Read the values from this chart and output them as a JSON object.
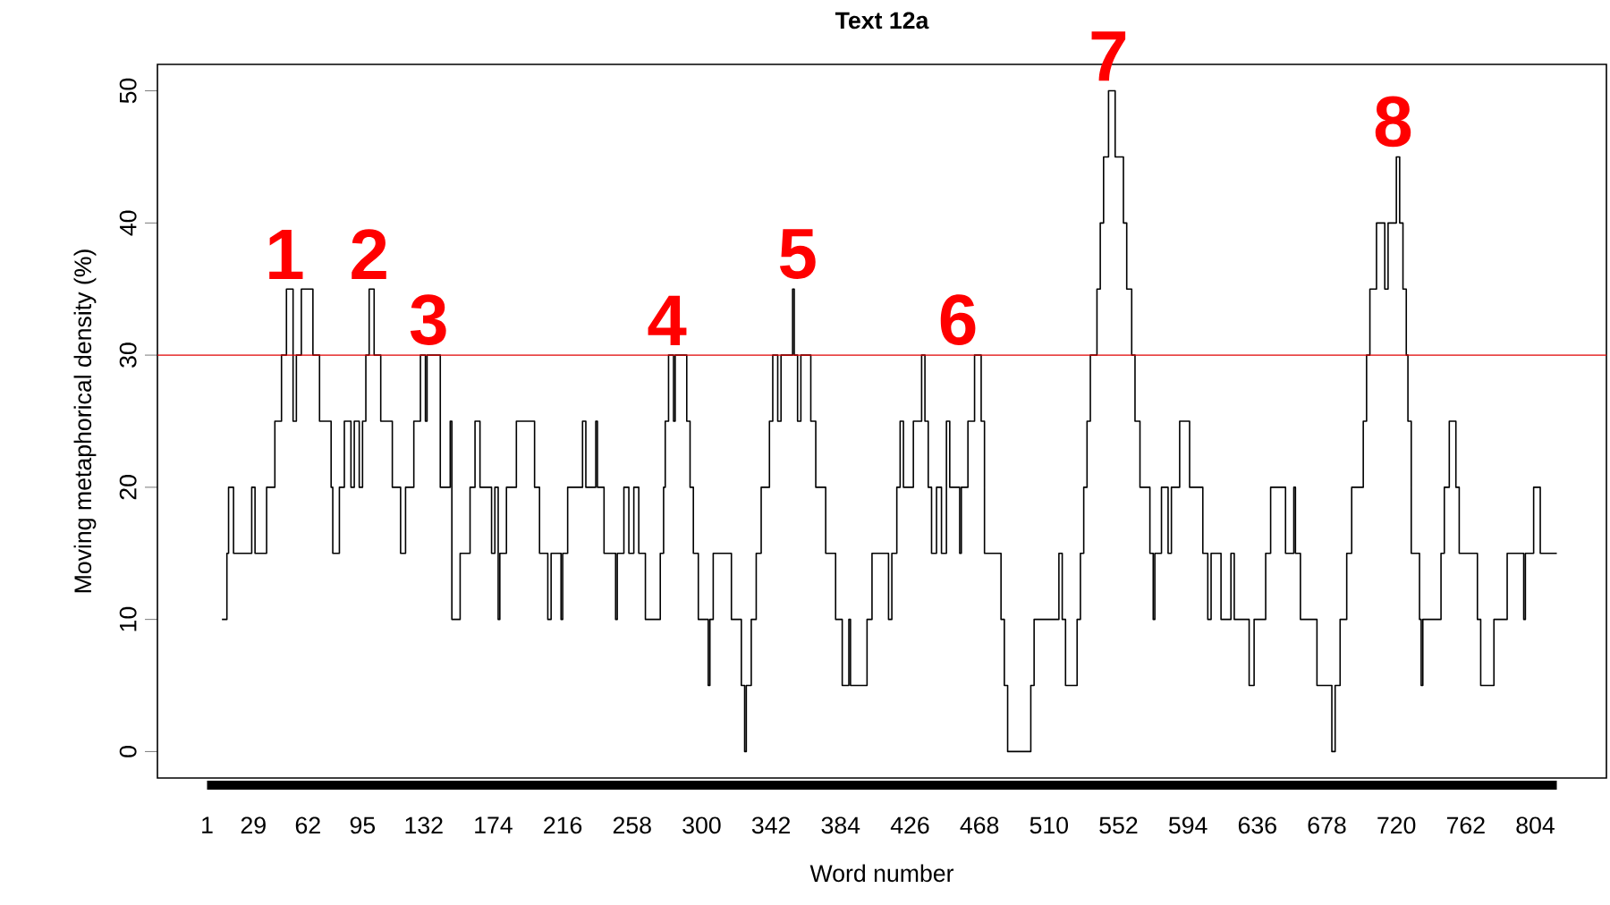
{
  "chart_data": {
    "type": "step",
    "title": "Text 12a",
    "xlabel": "Word number",
    "ylabel": "Moving metaphorical density (%)",
    "xlim": [
      -29,
      847
    ],
    "ylim": [
      -2,
      52
    ],
    "xticks": [
      1,
      29,
      62,
      95,
      132,
      174,
      216,
      258,
      300,
      342,
      384,
      426,
      468,
      510,
      552,
      594,
      636,
      678,
      720,
      762,
      804
    ],
    "yticks": [
      0,
      10,
      20,
      30,
      40,
      50
    ],
    "grid": false,
    "marker": "none",
    "line_style": "solid",
    "series": [
      {
        "color": "#000000",
        "x": [
          10,
          13,
          14,
          17,
          28,
          30,
          37,
          42,
          46,
          49,
          53,
          55,
          58,
          65,
          69,
          76,
          77,
          81,
          84,
          88,
          90,
          93,
          95,
          97,
          99,
          102,
          106,
          113,
          118,
          121,
          126,
          130,
          133,
          134,
          142,
          148,
          149,
          154,
          160,
          163,
          166,
          173,
          175,
          177,
          178,
          182,
          188,
          199,
          202,
          207,
          209,
          215,
          216,
          219,
          228,
          230,
          236,
          237,
          241,
          248,
          249,
          253,
          256,
          259,
          262,
          266,
          275,
          277,
          278,
          280,
          283,
          284,
          291,
          293,
          295,
          298,
          304,
          305,
          307,
          318,
          324,
          326,
          327,
          330,
          333,
          336,
          341,
          343,
          346,
          348,
          355,
          356,
          358,
          360,
          366,
          369,
          375,
          381,
          385,
          389,
          390,
          400,
          403,
          413,
          415,
          418,
          420,
          422,
          428,
          433,
          435,
          437,
          439,
          442,
          445,
          448,
          450,
          456,
          457,
          461,
          465,
          469,
          471,
          481,
          483,
          485,
          499,
          501,
          516,
          518,
          520,
          527,
          529,
          531,
          533,
          535,
          539,
          541,
          543,
          546,
          550,
          555,
          557,
          560,
          562,
          565,
          571,
          573,
          574,
          578,
          582,
          584,
          589,
          595,
          603,
          606,
          608,
          614,
          620,
          622,
          631,
          634,
          641,
          644,
          653,
          658,
          659,
          662,
          672,
          681,
          683,
          686,
          690,
          693,
          700,
          702,
          704,
          708,
          713,
          715,
          720,
          722,
          724,
          726,
          727,
          729,
          734,
          735,
          736,
          747,
          749,
          752,
          756,
          758,
          769,
          771,
          779,
          787,
          797,
          798,
          803,
          807,
          817
        ],
        "values": [
          10,
          15,
          20,
          15,
          20,
          15,
          20,
          25,
          30,
          35,
          25,
          30,
          35,
          30,
          25,
          20,
          15,
          20,
          25,
          20,
          25,
          20,
          25,
          30,
          35,
          30,
          25,
          20,
          15,
          20,
          25,
          30,
          25,
          30,
          20,
          25,
          10,
          15,
          20,
          25,
          20,
          15,
          20,
          10,
          15,
          20,
          25,
          20,
          15,
          10,
          15,
          10,
          15,
          20,
          25,
          20,
          25,
          20,
          15,
          10,
          15,
          20,
          15,
          20,
          15,
          10,
          15,
          20,
          25,
          30,
          25,
          30,
          25,
          20,
          15,
          10,
          5,
          10,
          15,
          10,
          5,
          0,
          5,
          10,
          15,
          20,
          25,
          30,
          25,
          30,
          35,
          30,
          25,
          30,
          25,
          20,
          15,
          10,
          5,
          10,
          5,
          10,
          15,
          10,
          15,
          20,
          25,
          20,
          25,
          30,
          25,
          20,
          15,
          20,
          15,
          25,
          20,
          15,
          20,
          25,
          30,
          25,
          15,
          10,
          5,
          0,
          5,
          10,
          15,
          10,
          5,
          10,
          15,
          20,
          25,
          30,
          35,
          40,
          45,
          50,
          45,
          40,
          35,
          30,
          25,
          20,
          15,
          10,
          15,
          20,
          15,
          20,
          25,
          20,
          15,
          10,
          15,
          10,
          15,
          10,
          5,
          10,
          15,
          20,
          15,
          20,
          15,
          10,
          5,
          0,
          5,
          10,
          15,
          20,
          25,
          30,
          35,
          40,
          35,
          40,
          45,
          40,
          35,
          30,
          25,
          15,
          10,
          5,
          10,
          15,
          20,
          25,
          20,
          15,
          10,
          5,
          10,
          15,
          10,
          15,
          20,
          15,
          15
        ]
      }
    ],
    "ref_lines": [
      {
        "axis": "y",
        "value": 30,
        "color": "#e00000",
        "line_style": "solid"
      }
    ],
    "annotations": [
      {
        "text": "1",
        "x": 48,
        "y": 35
      },
      {
        "text": "2",
        "x": 99,
        "y": 35
      },
      {
        "text": "3",
        "x": 135,
        "y": 30
      },
      {
        "text": "4",
        "x": 279,
        "y": 30
      },
      {
        "text": "5",
        "x": 358,
        "y": 35
      },
      {
        "text": "6",
        "x": 455,
        "y": 30
      },
      {
        "text": "7",
        "x": 546,
        "y": 50
      },
      {
        "text": "8",
        "x": 718,
        "y": 45
      }
    ]
  }
}
